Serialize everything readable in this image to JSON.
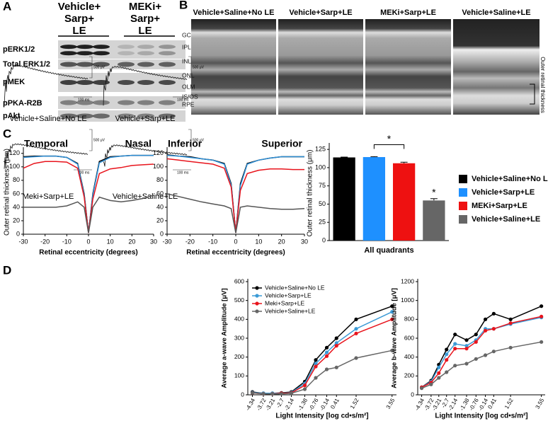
{
  "panel_labels": [
    "A",
    "B",
    "C",
    "D"
  ],
  "blot": {
    "groups": [
      [
        "Vehicle+",
        "Sarp+",
        "LE"
      ],
      [
        "MEKi+",
        "Sarp+",
        "LE"
      ]
    ],
    "rows": [
      "pERK1/2",
      "Total ERK1/2",
      "pMEK",
      "pPKA-R2B",
      "pAkt"
    ]
  },
  "retina": {
    "images": [
      "Vehicle+Saline+No LE",
      "Vehicle+Sarp+LE",
      "MEKi+Sarp+LE",
      "Vehicle+Saline+LE"
    ],
    "layers": [
      "GC",
      "IPL",
      "INL",
      "ONL",
      "OLM",
      "IS/OS",
      "RPE"
    ],
    "thickness_label": "Outer retinal thickness"
  },
  "erg_traces": {
    "labels": [
      "Vehicle+Saline+No LE",
      "Vehicle+Sarp+LE",
      "Meki+Sarp+LE",
      "Vehicle+Saline+LE"
    ],
    "scale_voltage": "500 μV",
    "scale_time": "100 ms"
  },
  "chart_data": [
    {
      "type": "line",
      "ylabel": "Outer retinal thickness (μm)",
      "xlabel": "Retinal eccentricity (degrees)",
      "annotations": [
        "Temporal",
        "Nasal"
      ],
      "x": [
        -30,
        -25,
        -20,
        -15,
        -10,
        -5,
        -2,
        0,
        2,
        5,
        10,
        15,
        20,
        25,
        30
      ],
      "series": [
        {
          "color": "#000000",
          "values": [
            115,
            116,
            116,
            116,
            114,
            105,
            60,
            2,
            60,
            108,
            115,
            116,
            117,
            117,
            117
          ]
        },
        {
          "color": "#2e8fd6",
          "values": [
            114,
            115,
            116,
            116,
            114,
            104,
            58,
            2,
            58,
            106,
            114,
            116,
            117,
            117,
            117
          ]
        },
        {
          "color": "#e8141c",
          "values": [
            98,
            105,
            108,
            108,
            107,
            98,
            55,
            2,
            52,
            90,
            97,
            99,
            102,
            103,
            104
          ]
        },
        {
          "color": "#555555",
          "values": [
            40,
            40,
            40,
            40,
            42,
            48,
            40,
            2,
            40,
            55,
            50,
            48,
            50,
            53,
            58
          ]
        }
      ],
      "xlim": [
        -30,
        30
      ],
      "xticks": [
        -30,
        -20,
        -10,
        0,
        10,
        20,
        30
      ],
      "ylim": [
        0,
        125
      ],
      "yticks": [
        0,
        20,
        40,
        60,
        80,
        100,
        120
      ]
    },
    {
      "type": "line",
      "xlabel": "Retinal eccentricity (degrees)",
      "annotations": [
        "Inferior",
        "Superior"
      ],
      "x": [
        -30,
        -25,
        -20,
        -15,
        -10,
        -5,
        -2,
        0,
        2,
        5,
        10,
        15,
        20,
        25,
        30
      ],
      "series": [
        {
          "color": "#000000",
          "values": [
            118,
            116,
            115,
            112,
            110,
            105,
            75,
            2,
            75,
            105,
            110,
            113,
            115,
            115,
            115
          ]
        },
        {
          "color": "#2e8fd6",
          "values": [
            117,
            116,
            114,
            112,
            110,
            104,
            73,
            2,
            72,
            104,
            110,
            113,
            115,
            115,
            115
          ]
        },
        {
          "color": "#e8141c",
          "values": [
            112,
            110,
            108,
            106,
            104,
            98,
            70,
            2,
            65,
            90,
            95,
            97,
            97,
            96,
            96
          ]
        },
        {
          "color": "#555555",
          "values": [
            60,
            56,
            52,
            48,
            45,
            42,
            38,
            2,
            40,
            42,
            40,
            38,
            37,
            37,
            38
          ]
        }
      ],
      "xlim": [
        -30,
        30
      ],
      "xticks": [
        -30,
        -20,
        -10,
        0,
        10,
        20,
        30
      ],
      "ylim": [
        0,
        125
      ],
      "yticks": [
        0,
        20,
        40,
        60,
        80,
        100,
        120
      ]
    },
    {
      "type": "bar",
      "ylabel": "Outer retinal thickness (μm)",
      "xlabel": "All quadrants",
      "annotations": [
        "*",
        "*"
      ],
      "categories": [
        "Vehicle+Saline+No LE",
        "Vehicle+Sarp+LE",
        "MEKi+Sarp+LE",
        "Vehicle+Saline+LE"
      ],
      "colors": [
        "#000000",
        "#1e90ff",
        "#ee1111",
        "#666666"
      ],
      "values": [
        114,
        114.5,
        106,
        55
      ],
      "errors": [
        0.5,
        0.6,
        1.5,
        2.5
      ],
      "ylim": [
        0,
        130
      ],
      "yticks": [
        0,
        25,
        50,
        75,
        100,
        125
      ]
    },
    {
      "type": "line",
      "markers": true,
      "ylabel": "Average a-wave Amplitude [μV]",
      "xlabel": "Light Intensity [log cd•s/m²]",
      "x": [
        -4.34,
        -3.72,
        -3.21,
        -2.7,
        -2.14,
        -1.38,
        -0.76,
        -0.14,
        0.41,
        1.52,
        3.55
      ],
      "series": [
        {
          "name": "Vehicle+Saline+No LE",
          "color": "#000000",
          "values": [
            15,
            8,
            8,
            10,
            15,
            70,
            185,
            250,
            300,
            400,
            470
          ]
        },
        {
          "name": "Vehicle+Sarp+LE",
          "color": "#3b9ad6",
          "values": [
            12,
            8,
            8,
            8,
            12,
            60,
            165,
            225,
            275,
            350,
            440
          ]
        },
        {
          "name": "Meki+Sarp+LE",
          "color": "#e8141c",
          "values": [
            10,
            5,
            5,
            8,
            10,
            50,
            150,
            205,
            260,
            325,
            400
          ]
        },
        {
          "name": "Vehicle+Saline+LE",
          "color": "#666666",
          "values": [
            10,
            5,
            5,
            5,
            8,
            30,
            90,
            135,
            145,
            195,
            235
          ]
        }
      ],
      "xlim": [
        -4.6,
        3.8
      ],
      "xticks": [
        -4.34,
        -3.72,
        -3.21,
        -2.7,
        -2.14,
        -1.38,
        -0.76,
        -0.14,
        0.41,
        1.52,
        3.55
      ],
      "ylim": [
        0,
        600
      ],
      "yticks": [
        0,
        100,
        200,
        300,
        400,
        500,
        600
      ]
    },
    {
      "type": "line",
      "markers": true,
      "ylabel": "Average b-wave Amplitude [μV]",
      "xlabel": "Light Intensity [log cd•s/m²]",
      "x": [
        -4.34,
        -3.72,
        -3.21,
        -2.7,
        -2.14,
        -1.38,
        -0.76,
        -0.14,
        0.41,
        1.52,
        3.55
      ],
      "series": [
        {
          "color": "#000000",
          "values": [
            80,
            150,
            320,
            480,
            640,
            580,
            640,
            800,
            860,
            800,
            940
          ]
        },
        {
          "color": "#3b9ad6",
          "values": [
            80,
            140,
            290,
            430,
            540,
            520,
            580,
            700,
            700,
            750,
            820
          ]
        },
        {
          "color": "#e8141c",
          "values": [
            80,
            130,
            230,
            370,
            490,
            490,
            560,
            680,
            700,
            760,
            830
          ]
        },
        {
          "color": "#666666",
          "values": [
            70,
            110,
            180,
            240,
            310,
            330,
            380,
            420,
            460,
            500,
            560
          ]
        }
      ],
      "xlim": [
        -4.6,
        3.8
      ],
      "xticks": [
        -4.34,
        -3.72,
        -3.21,
        -2.7,
        -2.14,
        -1.38,
        -0.76,
        -0.14,
        0.41,
        1.52,
        3.55
      ],
      "ylim": [
        0,
        1200
      ],
      "yticks": [
        0,
        200,
        400,
        600,
        800,
        1000,
        1200
      ]
    }
  ]
}
